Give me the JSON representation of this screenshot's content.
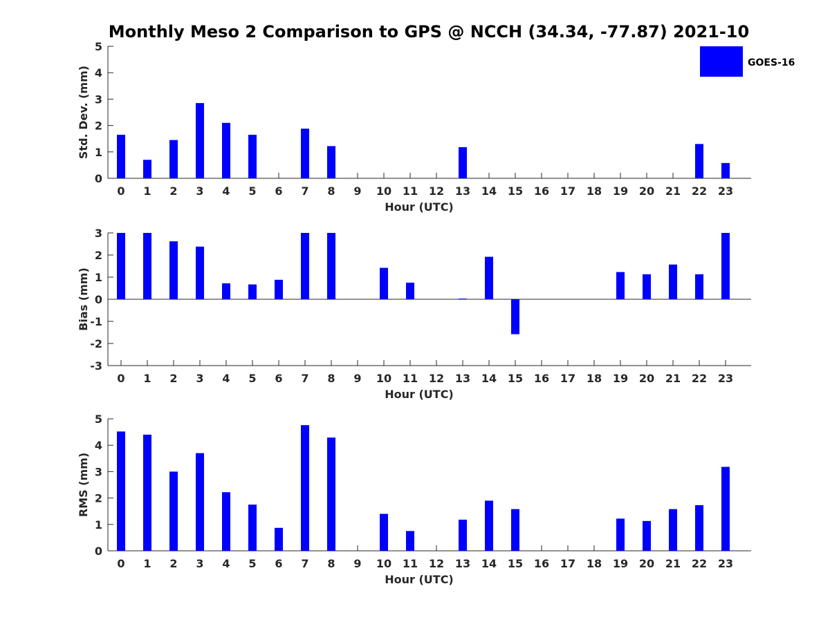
{
  "chart_data": {
    "type": "bar",
    "title": "Monthly Meso 2 Comparison to GPS @ NCCH (34.34, -77.87) 2021-10",
    "legend": {
      "placement": "top-right",
      "entries": [
        {
          "name": "GOES-16",
          "color": "#0000ff"
        }
      ]
    },
    "categories": [
      "0",
      "1",
      "2",
      "3",
      "4",
      "5",
      "6",
      "7",
      "8",
      "9",
      "10",
      "11",
      "12",
      "13",
      "14",
      "15",
      "16",
      "17",
      "18",
      "19",
      "20",
      "21",
      "22",
      "23"
    ],
    "panels": [
      {
        "xlabel": "Hour (UTC)",
        "ylabel": "Std. Dev. (mm)",
        "ylim": [
          0,
          5
        ],
        "yticks": [
          "0",
          "1",
          "2",
          "3",
          "4",
          "5"
        ],
        "grid": false,
        "series": [
          {
            "name": "GOES-16",
            "color": "#0000ff",
            "values": [
              1.65,
              0.7,
              1.45,
              2.85,
              2.1,
              1.65,
              null,
              1.88,
              1.22,
              null,
              null,
              null,
              null,
              1.18,
              null,
              null,
              null,
              null,
              null,
              null,
              null,
              null,
              1.3,
              0.58
            ]
          }
        ]
      },
      {
        "xlabel": "Hour (UTC)",
        "ylabel": "Bias (mm)",
        "ylim": [
          -3,
          3
        ],
        "yticks": [
          "-3",
          "-2",
          "-1",
          "0",
          "1",
          "2",
          "3"
        ],
        "grid": false,
        "series": [
          {
            "name": "GOES-16",
            "color": "#0000ff",
            "values": [
              3.0,
              3.0,
              2.62,
              2.38,
              0.72,
              0.67,
              0.88,
              3.0,
              3.0,
              null,
              1.42,
              0.75,
              null,
              0.03,
              1.92,
              -1.58,
              null,
              null,
              null,
              1.23,
              1.13,
              1.57,
              1.13,
              3.0
            ]
          }
        ]
      },
      {
        "xlabel": "Hour (UTC)",
        "ylabel": "RMS (mm)",
        "ylim": [
          0,
          5
        ],
        "yticks": [
          "0",
          "1",
          "2",
          "3",
          "4",
          "5"
        ],
        "grid": false,
        "series": [
          {
            "name": "GOES-16",
            "color": "#0000ff",
            "values": [
              4.52,
              4.4,
              3.0,
              3.7,
              2.22,
              1.75,
              0.87,
              4.76,
              4.29,
              null,
              1.4,
              0.75,
              null,
              1.18,
              1.9,
              1.58,
              null,
              null,
              null,
              1.22,
              1.13,
              1.58,
              1.73,
              3.18
            ]
          }
        ]
      }
    ]
  }
}
